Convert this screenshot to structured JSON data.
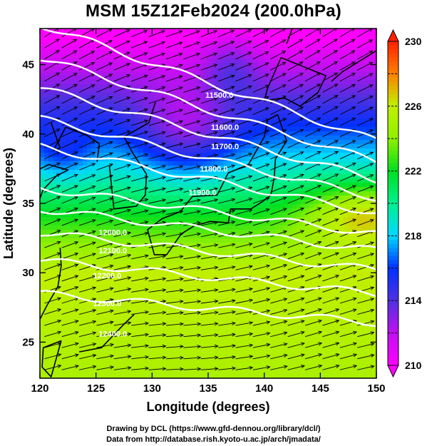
{
  "title": "MSM 15Z12Feb2024 (200.0hPa)",
  "xaxis": {
    "label": "Longitude (degrees)",
    "range": [
      120,
      150
    ],
    "ticks": [
      120,
      125,
      130,
      135,
      140,
      145,
      150
    ]
  },
  "yaxis": {
    "label": "Latitude  (degrees)",
    "range": [
      22.4,
      47.6
    ],
    "ticks": [
      25,
      30,
      35,
      40,
      45
    ]
  },
  "colorbar": {
    "min": 210,
    "max": 230,
    "labels": [
      210,
      214,
      218,
      222,
      226,
      230
    ],
    "colors": [
      "#ff00ff",
      "#c010f0",
      "#5030e0",
      "#0030ff",
      "#00d8ff",
      "#00f090",
      "#00e020",
      "#90f000",
      "#c0f000",
      "#ff8000",
      "#ff2000"
    ]
  },
  "contours": [
    {
      "label": "11500.0",
      "lat_at_150": 39.5
    },
    {
      "label": "11600.0",
      "lat_at_150": 38.0
    },
    {
      "label": "11700.0",
      "lat_at_150": 36.7
    },
    {
      "label": "11800.0",
      "lat_at_150": 35.4
    },
    {
      "label": "11900.0",
      "lat_at_150": 34.3
    },
    {
      "label": "12000.0",
      "lat_at_150": 32.8
    },
    {
      "label": "12100.0",
      "lat_at_150": 31.6
    },
    {
      "label": "12200.0",
      "lat_at_150": 30.2
    },
    {
      "label": "12300.0",
      "lat_at_150": 28.5
    },
    {
      "label": "12400.0",
      "lat_at_150": 26.4
    }
  ],
  "credits": {
    "line1": "Drawing by DCL (https://www.gfd-dennou.org/library/dcl/)",
    "line2": "Data from http://database.rish.kyoto-u.ac.jp/arch/jmadata/"
  }
}
